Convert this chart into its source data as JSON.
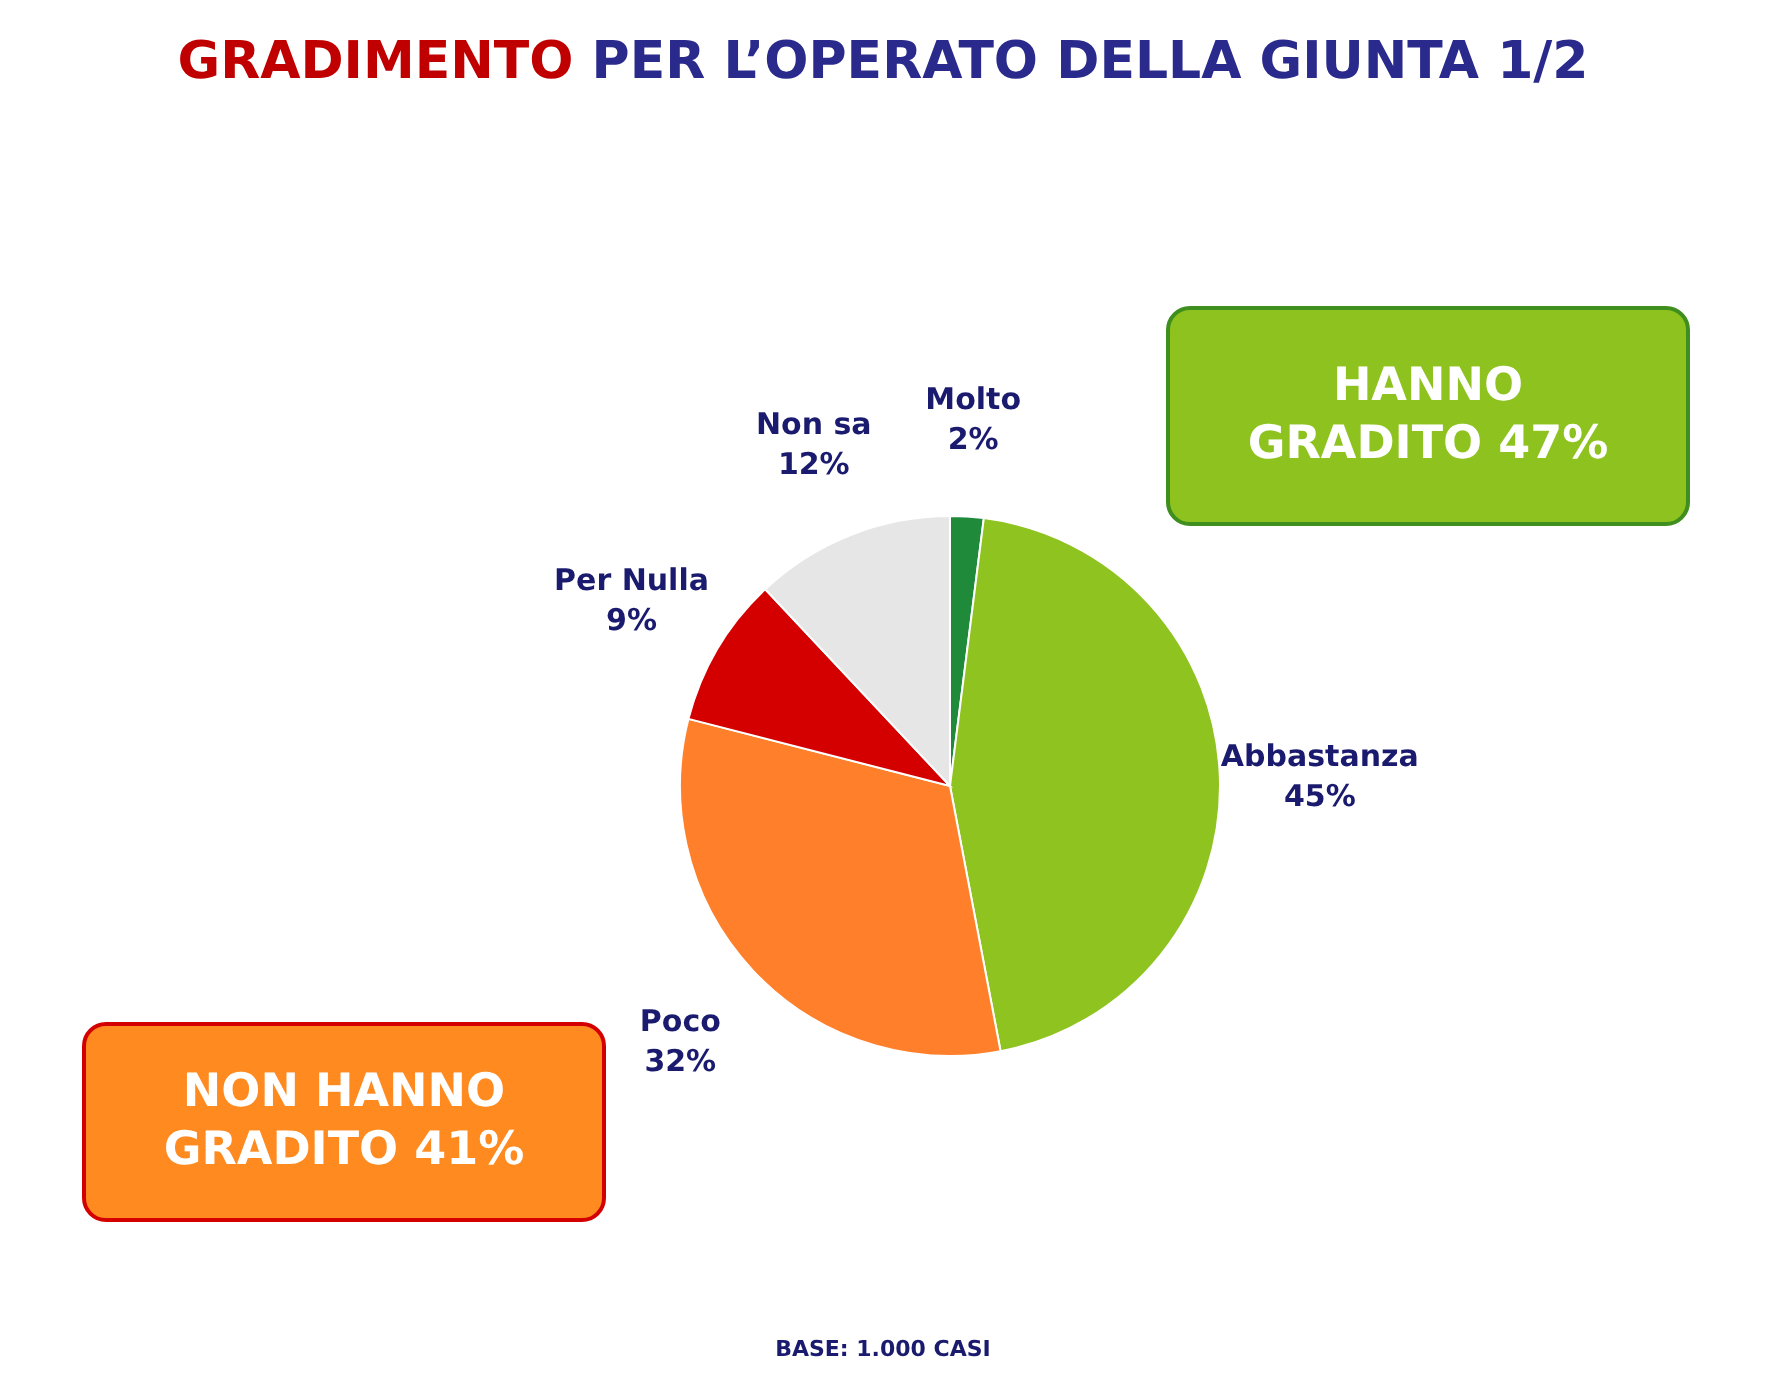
{
  "chart_data": {
    "type": "pie",
    "title": "GRADIMENTO PER L’OPERATO DELLA GIUNTA 1/2",
    "categories": [
      "Molto",
      "Abbastanza",
      "Poco",
      "Per Nulla",
      "Non sa"
    ],
    "values": [
      2,
      45,
      32,
      9,
      12
    ],
    "value_labels": [
      "2%",
      "45%",
      "32%",
      "9%",
      "12%"
    ],
    "colors": [
      "#1f8a3a",
      "#8fc31f",
      "#ff7f2a",
      "#d40000",
      "#e6e6e6"
    ],
    "legend": false,
    "annotations": [
      "HANNO GRADITO 47%",
      "NON HANNO GRADITO 41%",
      "BASE: 1.000 CASI"
    ]
  }
}
